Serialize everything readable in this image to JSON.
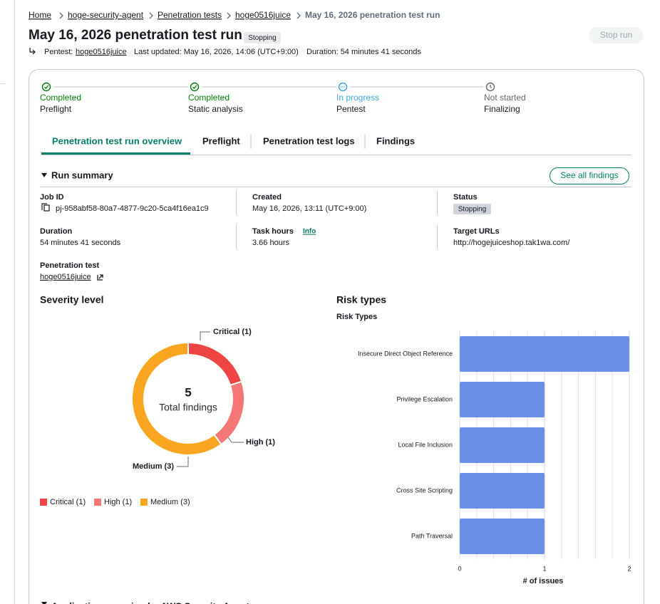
{
  "breadcrumb": [
    "Home",
    "hoge-security-agent",
    "Penetration tests",
    "hoge0516juice",
    "May 16, 2026 penetration test run"
  ],
  "header": {
    "title": "May 16, 2026 penetration test run",
    "status": "Stopping",
    "button": "Stop run",
    "pentest_label": "Pentest:",
    "pentest_link": "hoge0516juice",
    "last_updated": "Last updated: May 16, 2026, 14:06 (UTC+9:00)",
    "duration": "Duration: 54 minutes 41 seconds"
  },
  "steps": [
    {
      "status": "Completed",
      "name": "Preflight",
      "color": "#037f0c"
    },
    {
      "status": "Completed",
      "name": "Static analysis",
      "color": "#037f0c"
    },
    {
      "status": "In progress",
      "name": "Pentest",
      "color": "#3fa8dc"
    },
    {
      "status": "Not started",
      "name": "Finalizing",
      "color": "#656871"
    }
  ],
  "tabs": [
    "Penetration test run overview",
    "Preflight",
    "Penetration test logs",
    "Findings"
  ],
  "summary": {
    "title": "Run summary",
    "button": "See all findings",
    "fields": [
      {
        "label": "Job ID",
        "value": "pj-958abf58-80a7-4877-9c20-5ca4f16ea1c9"
      },
      {
        "label": "Created",
        "value": "May 16, 2026, 13:11 (UTC+9:00)"
      },
      {
        "label": "Status",
        "value": "Stopping"
      },
      {
        "label": "Duration",
        "value": "54 minutes 41 seconds"
      },
      {
        "label": "Task hours",
        "value": "3.66 hours",
        "info": "Info"
      },
      {
        "label": "Target URLs",
        "value": "http://hogejuiceshop.tak1wa.com/"
      },
      {
        "label": "Penetration test",
        "value": "hoge0516juice"
      }
    ]
  },
  "chart_data": [
    {
      "type": "pie",
      "title": "Severity level",
      "categories": [
        "Critical (1)",
        "High (1)",
        "Medium (3)"
      ],
      "values": [
        1,
        1,
        3
      ],
      "colors": [
        "#ef4444",
        "#f47676",
        "#f9a51f"
      ],
      "center_value": 5,
      "center_label": "Total findings"
    },
    {
      "type": "bar",
      "section_title": "Risk types",
      "title": "Risk Types",
      "categories": [
        "Insecure Direct Object Reference",
        "Privilege Escalation",
        "Local File Inclusion",
        "Cross Site Scripting",
        "Path Traversal"
      ],
      "values": [
        2,
        1,
        1,
        1,
        1
      ],
      "color": "#6b8ee6",
      "xlabel": "# of issues",
      "xlim": [
        0,
        2
      ],
      "xticks": [
        0,
        1,
        2
      ],
      "minor_xticks": [
        0.2,
        0.4,
        0.6,
        0.8,
        1.2,
        1.4,
        1.6,
        1.8
      ],
      "grid": true
    }
  ],
  "footer_section": "Application scanning by AWS Security Agent"
}
